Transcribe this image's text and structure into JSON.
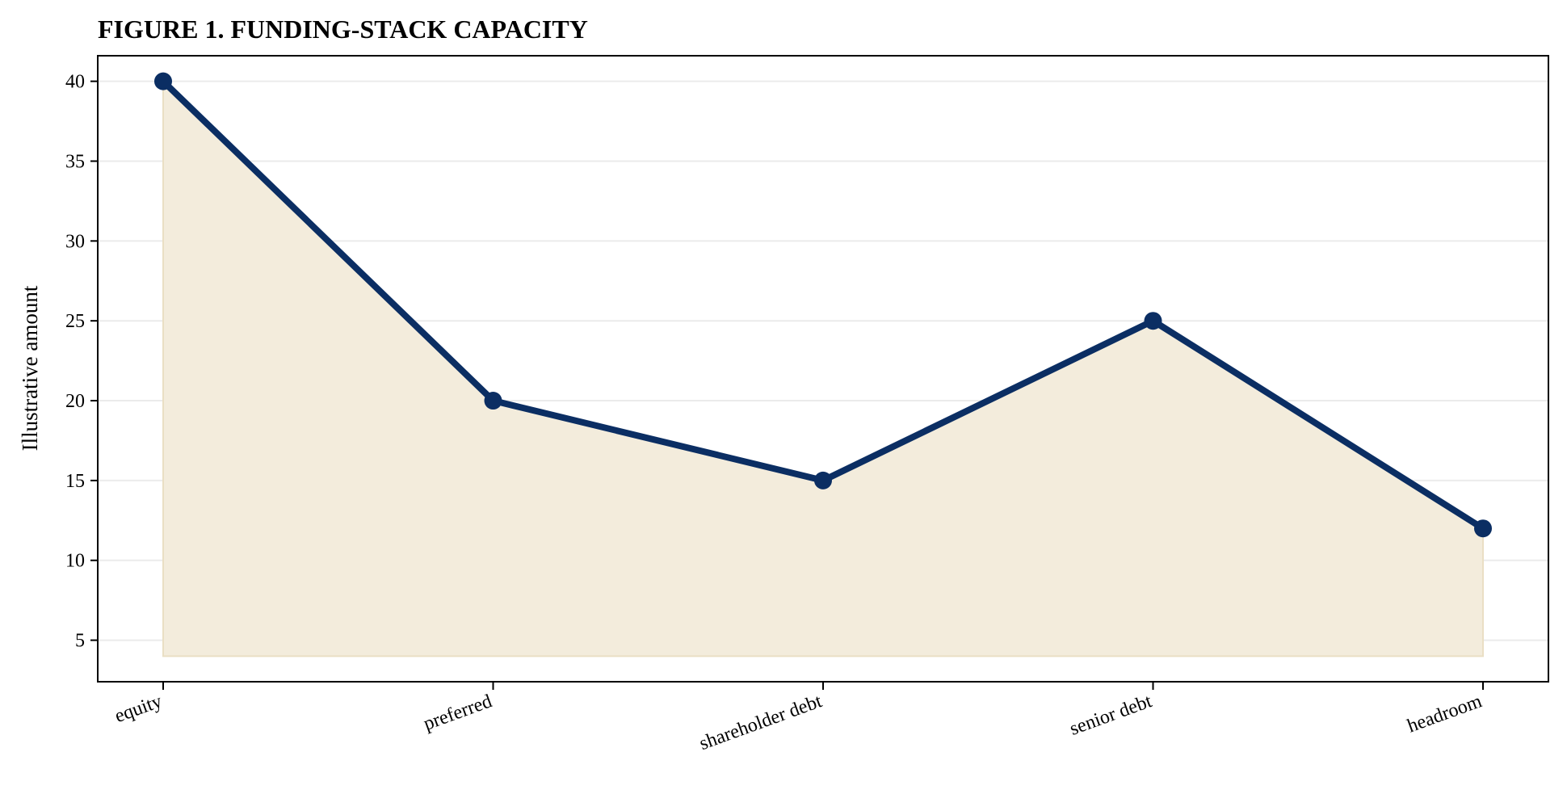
{
  "chart_data": {
    "type": "area",
    "title": "FIGURE 1. FUNDING-STACK CAPACITY",
    "xlabel": "",
    "ylabel": "Illustrative amount",
    "categories": [
      "equity",
      "preferred",
      "shareholder debt",
      "senior debt",
      "headroom"
    ],
    "series": [
      {
        "values": [
          40,
          20,
          15,
          25,
          12
        ],
        "fill_baseline": 4
      }
    ],
    "ylim": [
      2.4,
      41.6
    ],
    "yticks": [
      5,
      10,
      15,
      20,
      25,
      30,
      35,
      40
    ],
    "grid": "horizontal",
    "colors": {
      "line": "#0b2e63",
      "fill": "#f3ecdc",
      "fill_edge": "#eadfc4",
      "grid": "#ebebeb"
    }
  }
}
